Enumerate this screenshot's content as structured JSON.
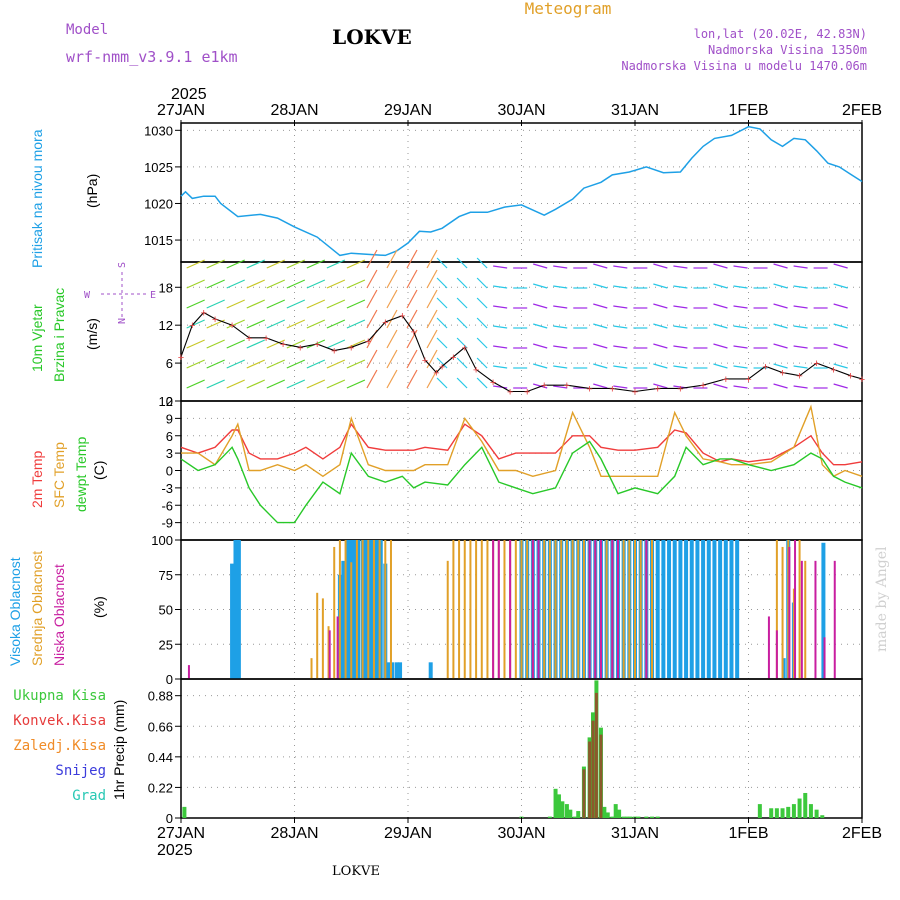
{
  "header": {
    "model_label": "Model",
    "model_name": "wrf-nmm_v3.9.1 e1km",
    "station": "LOKVE",
    "title": "Meteogram",
    "lonlat": "lon,lat (20.02E, 42.83N)",
    "altitude": "Nadmorska Visina 1350m",
    "model_altitude": "Nadmorska Visina u modelu 1470.06m",
    "year_top": "2025",
    "year_bottom": "2025",
    "footer_station": "LOKVE",
    "credit": "made by Angel"
  },
  "colors": {
    "pressure": "#1ea0e6",
    "temp2m": "#f03c3c",
    "sfc": "#e1a028",
    "dewpt": "#28c828",
    "high_cloud": "#1ea0e6",
    "mid_cloud": "#e1a028",
    "low_cloud": "#c81ea0",
    "precip_total": "#3cc83c",
    "precip_conv": "#e63c3c",
    "precip_frz": "#f08c28",
    "snow": "#3c3cdc",
    "grad": "#28c8b4",
    "wind_label": "#28c828",
    "compass": "#a050c8",
    "wind_speed": "#e64040"
  },
  "chart_data": [
    {
      "panel": "pressure",
      "type": "line",
      "ylabel_text": "Pritisak na nivou mora",
      "unit": "(hPa)",
      "x_ticks": [
        "27JAN",
        "28JAN",
        "29JAN",
        "30JAN",
        "31JAN",
        "1FEB",
        "2FEB"
      ],
      "x_range": [
        0,
        6
      ],
      "ylim": [
        1012,
        1031
      ],
      "yticks": [
        1015,
        1020,
        1025,
        1030
      ],
      "series": [
        {
          "x": [
            0,
            0.04,
            0.1,
            0.2,
            0.3,
            0.35,
            0.5,
            0.7,
            0.85,
            1.0,
            1.2,
            1.4,
            1.5,
            1.6,
            1.8,
            1.9,
            2.0,
            2.1,
            2.2,
            2.3,
            2.45,
            2.55,
            2.7,
            2.85,
            3.0,
            3.2,
            3.3,
            3.45,
            3.55,
            3.7,
            3.8,
            3.95,
            4.1,
            4.25,
            4.4,
            4.5,
            4.6,
            4.7,
            4.85,
            5.0,
            5.1,
            5.2,
            5.3,
            5.4,
            5.5,
            5.6,
            5.7,
            5.8,
            5.9,
            6.0
          ],
          "values": [
            1021,
            1021.6,
            1020.7,
            1021,
            1021,
            1020,
            1018.2,
            1018.5,
            1018,
            1016.8,
            1015.4,
            1012.9,
            1013.2,
            1013.1,
            1012.9,
            1013.5,
            1014.6,
            1016.2,
            1016.1,
            1016.6,
            1018.2,
            1018.8,
            1018.8,
            1019.5,
            1019.8,
            1018.4,
            1019.2,
            1020.6,
            1022.1,
            1022.9,
            1023.9,
            1024.3,
            1025,
            1024.2,
            1024.3,
            1026.2,
            1027.8,
            1028.9,
            1029.3,
            1030.5,
            1030.2,
            1028.7,
            1027.8,
            1028.9,
            1028.7,
            1027.2,
            1025.5,
            1025,
            1024,
            1023
          ]
        }
      ]
    },
    {
      "panel": "wind",
      "type": "line",
      "ylabel_text": [
        "10m Vjetar",
        "Brzina i Pravac"
      ],
      "unit": "(m/s)",
      "compass": [
        "S",
        "E",
        "W",
        "N"
      ],
      "ylim": [
        0,
        22
      ],
      "yticks": [
        0,
        6,
        12,
        18
      ],
      "series": [
        {
          "name": "wind speed",
          "x": [
            0,
            0.1,
            0.2,
            0.3,
            0.45,
            0.6,
            0.75,
            0.9,
            1.05,
            1.2,
            1.35,
            1.5,
            1.65,
            1.8,
            1.95,
            2.05,
            2.15,
            2.25,
            2.3,
            2.4,
            2.5,
            2.6,
            2.75,
            2.9,
            3.05,
            3.2,
            3.4,
            3.6,
            3.8,
            4.0,
            4.2,
            4.4,
            4.6,
            4.8,
            5.0,
            5.15,
            5.3,
            5.45,
            5.6,
            5.75,
            5.9,
            6.0
          ],
          "values": [
            7,
            12,
            14,
            13,
            12,
            10,
            10,
            9,
            8.5,
            9,
            8,
            8.5,
            9.5,
            12.5,
            13.5,
            11,
            6.5,
            4.5,
            5.5,
            7,
            8.5,
            5,
            3,
            1.5,
            1.5,
            2.5,
            2.5,
            2,
            2,
            1.5,
            2,
            2,
            2.5,
            3.5,
            3.5,
            5.5,
            4.5,
            4,
            6,
            5,
            4,
            3.5
          ]
        }
      ]
    },
    {
      "panel": "temperature",
      "type": "line",
      "ylabel_text": [
        "2m Temp",
        "SFC Temp",
        "dewpt Temp"
      ],
      "unit": "(C)",
      "ylim": [
        -12,
        12
      ],
      "yticks": [
        -9,
        -6,
        -3,
        0,
        3,
        6,
        9,
        12
      ],
      "x": [
        0,
        0.15,
        0.3,
        0.45,
        0.5,
        0.6,
        0.7,
        0.85,
        1.0,
        1.1,
        1.25,
        1.4,
        1.5,
        1.65,
        1.8,
        1.95,
        2.05,
        2.15,
        2.35,
        2.5,
        2.65,
        2.8,
        2.95,
        3.1,
        3.3,
        3.45,
        3.6,
        3.7,
        3.85,
        4.0,
        4.2,
        4.35,
        4.45,
        4.6,
        4.75,
        4.85,
        5.0,
        5.2,
        5.4,
        5.55,
        5.65,
        5.75,
        5.85,
        6.0
      ],
      "series": [
        {
          "name": "2m Temp",
          "values": [
            4,
            3,
            4,
            7,
            7,
            3,
            2,
            2,
            3,
            4,
            2,
            4,
            8,
            4,
            3.5,
            3.5,
            3.5,
            4,
            3.5,
            8,
            6,
            2,
            3,
            3,
            3,
            6,
            6,
            4,
            3.5,
            3.5,
            4,
            7,
            6.5,
            3,
            1.5,
            2,
            1.5,
            2,
            4,
            6,
            3,
            1,
            1,
            1.5
          ]
        },
        {
          "name": "SFC Temp",
          "values": [
            3,
            3,
            1,
            6,
            8,
            0,
            0,
            1,
            0,
            1,
            -1,
            1,
            9,
            1,
            0,
            0,
            0,
            1,
            1,
            9,
            5,
            0,
            0,
            -1,
            0,
            10,
            4,
            -1,
            -1,
            -1,
            -1,
            10,
            6,
            2,
            1.5,
            1,
            1,
            1.5,
            4,
            11,
            1,
            -1,
            0,
            -1
          ]
        },
        {
          "name": "dewpt Temp",
          "values": [
            2,
            0,
            1,
            4,
            2,
            -3,
            -6,
            -9,
            -9,
            -6,
            -2,
            -4,
            3,
            -1,
            -2,
            -1,
            -3,
            -2,
            -2.5,
            1,
            4,
            -2,
            -3,
            -4,
            -3,
            3,
            5,
            2,
            -4,
            -3,
            -4,
            -1,
            4,
            1,
            2,
            2,
            1,
            0,
            1,
            3,
            2,
            -1,
            -2,
            -3
          ]
        }
      ]
    },
    {
      "panel": "clouds",
      "type": "bar",
      "ylabel_text": [
        "Visoka Oblacnost",
        "Srednja Oblacnost",
        "Niska Oblacnost"
      ],
      "unit": "(%)",
      "ylim": [
        0,
        100
      ],
      "yticks": [
        0,
        25,
        50,
        75,
        100
      ],
      "series": [
        {
          "name": "Visoka Oblacnost",
          "x": [
            0.45,
            0.48,
            0.51,
            1.4,
            1.43,
            1.47,
            1.5,
            1.53,
            1.56,
            1.6,
            1.63,
            1.67,
            1.7,
            1.73,
            1.76,
            1.8,
            1.83,
            1.86,
            1.9,
            1.93,
            2.2,
            3.0,
            3.05,
            3.1,
            3.15,
            3.2,
            3.25,
            3.3,
            3.35,
            3.4,
            3.45,
            3.5,
            3.55,
            3.6,
            3.65,
            3.7,
            3.75,
            3.8,
            3.85,
            3.9,
            3.95,
            4.0,
            4.05,
            4.1,
            4.15,
            4.2,
            4.25,
            4.3,
            4.35,
            4.4,
            4.45,
            4.5,
            4.55,
            4.6,
            4.65,
            4.7,
            4.75,
            4.8,
            4.85,
            4.9,
            5.31,
            5.35,
            5.4,
            5.66
          ],
          "values": [
            83,
            100,
            100,
            75,
            85,
            100,
            100,
            100,
            100,
            100,
            100,
            100,
            100,
            100,
            100,
            83,
            12,
            12,
            12,
            12,
            12,
            100,
            100,
            100,
            100,
            100,
            100,
            100,
            100,
            100,
            100,
            100,
            100,
            100,
            100,
            100,
            100,
            100,
            100,
            100,
            100,
            100,
            100,
            100,
            100,
            100,
            100,
            100,
            100,
            100,
            100,
            100,
            100,
            100,
            100,
            100,
            100,
            100,
            100,
            100,
            15,
            100,
            55,
            98
          ]
        },
        {
          "name": "Srednja Oblacnost",
          "x": [
            1.15,
            1.2,
            1.25,
            1.3,
            1.35,
            1.4,
            1.45,
            1.5,
            1.55,
            1.6,
            1.65,
            1.7,
            1.75,
            1.8,
            1.85,
            2.35,
            2.4,
            2.45,
            2.5,
            2.55,
            2.6,
            2.65,
            2.7,
            2.75,
            2.8,
            2.85,
            2.9,
            2.95,
            3.0,
            3.05,
            3.1,
            3.15,
            3.2,
            3.25,
            3.3,
            3.35,
            3.4,
            3.45,
            3.5,
            3.55,
            3.6,
            3.65,
            3.7,
            3.75,
            3.8,
            3.85,
            3.9,
            3.95,
            4.0,
            4.05,
            4.1,
            4.15,
            5.25,
            5.3,
            5.35,
            5.4,
            5.45,
            5.5
          ],
          "values": [
            15,
            62,
            58,
            38,
            95,
            100,
            100,
            84,
            100,
            100,
            100,
            100,
            100,
            100,
            100,
            85,
            100,
            100,
            100,
            100,
            100,
            100,
            100,
            100,
            100,
            100,
            100,
            100,
            100,
            100,
            100,
            100,
            100,
            100,
            100,
            100,
            100,
            100,
            100,
            100,
            100,
            100,
            100,
            100,
            100,
            100,
            100,
            100,
            100,
            100,
            100,
            100,
            100,
            95,
            100,
            65,
            100,
            85
          ]
        },
        {
          "name": "Niska Oblacnost",
          "x": [
            0.07,
            1.31,
            1.38,
            2.75,
            2.8,
            2.9,
            3.1,
            3.15,
            3.6,
            3.65,
            3.7,
            3.8,
            3.85,
            4.1,
            5.18,
            5.25,
            5.36,
            5.41,
            5.47,
            5.59,
            5.67,
            5.76
          ],
          "values": [
            10,
            35,
            45,
            100,
            100,
            100,
            100,
            100,
            100,
            100,
            100,
            100,
            100,
            100,
            45,
            35,
            95,
            100,
            85,
            85,
            30,
            85
          ]
        }
      ]
    },
    {
      "panel": "precip",
      "type": "bar",
      "ylabel_text": [
        "Ukupna Kisa",
        "Konvek.Kisa",
        "Zaledj.Kisa",
        "Snijeg",
        "Grad"
      ],
      "unit": "1hr Precip (mm)",
      "ylim": [
        0,
        1
      ],
      "yticks": [
        0,
        0.22,
        0.44,
        0.66,
        0.88
      ],
      "series": [
        {
          "name": "Ukupna Kisa",
          "x": [
            0.03,
            3.0,
            3.25,
            3.3,
            3.33,
            3.36,
            3.4,
            3.43,
            3.47,
            3.5,
            3.55,
            3.6,
            3.63,
            3.66,
            3.7,
            3.73,
            3.76,
            3.8,
            3.83,
            3.86,
            3.9,
            3.93,
            3.96,
            4.0,
            4.03,
            4.1,
            4.15,
            4.2,
            5.1,
            5.2,
            5.25,
            5.3,
            5.35,
            5.4,
            5.45,
            5.5,
            5.55,
            5.6,
            5.65
          ],
          "values": [
            0.08,
            0.01,
            0.01,
            0.21,
            0.17,
            0.12,
            0.1,
            0.06,
            0.01,
            0.05,
            0.37,
            0.58,
            0.76,
            0.99,
            0.65,
            0.08,
            0.04,
            0.01,
            0.1,
            0.06,
            0.01,
            0.01,
            0.01,
            0.01,
            0.01,
            0.01,
            0.01,
            0.01,
            0.1,
            0.07,
            0.07,
            0.07,
            0.08,
            0.1,
            0.14,
            0.18,
            0.1,
            0.06,
            0.02
          ]
        },
        {
          "name": "Konvek.Kisa",
          "x": [
            3.55,
            3.6,
            3.63,
            3.66,
            3.7
          ],
          "values": [
            0.35,
            0.55,
            0.7,
            0.9,
            0.6
          ]
        }
      ]
    }
  ]
}
